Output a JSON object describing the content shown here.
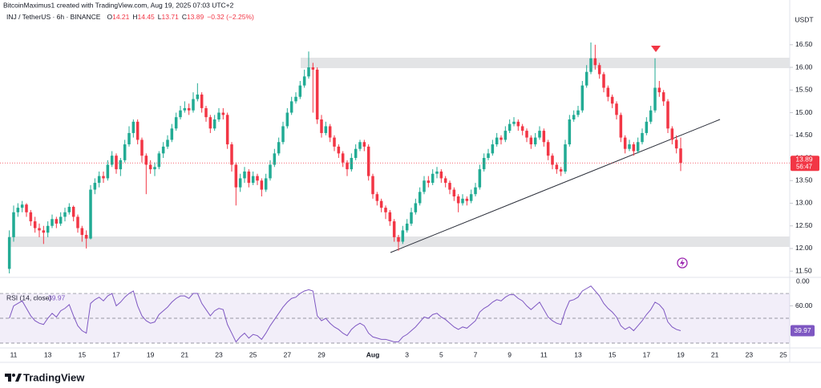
{
  "header": {
    "attribution": "BitcoinMaximus1 created with TradingView.com, Aug 19, 2025 07:03 UTC+2",
    "symbol": "INJ / TetherUS · 6h · BINANCE",
    "ohlc_labels": [
      "O",
      "H",
      "L",
      "C"
    ],
    "change": "−0.32 (−2.25%)",
    "currency": "USDT",
    "countdown": "56:47"
  },
  "chart_data": [
    {
      "type": "candlestick",
      "up_color": "#22ab94",
      "down_color": "#f23645",
      "categories": [
        null,
        "11",
        null,
        null,
        null,
        null,
        null,
        null,
        null,
        "13",
        null,
        null,
        null,
        null,
        null,
        null,
        null,
        "15",
        null,
        null,
        null,
        null,
        null,
        null,
        null,
        "17",
        null,
        null,
        null,
        null,
        null,
        null,
        null,
        "19",
        null,
        null,
        null,
        null,
        null,
        null,
        null,
        "21",
        null,
        null,
        null,
        null,
        null,
        null,
        null,
        "23",
        null,
        null,
        null,
        null,
        null,
        null,
        null,
        "25",
        null,
        null,
        null,
        null,
        null,
        null,
        null,
        "27",
        null,
        null,
        null,
        null,
        null,
        null,
        null,
        "29",
        null,
        null,
        null,
        null,
        null,
        null,
        null,
        null,
        null,
        null,
        null,
        "Aug",
        null,
        null,
        null,
        null,
        null,
        null,
        null,
        "3",
        null,
        null,
        null,
        null,
        null,
        null,
        null,
        "5",
        null,
        null,
        null,
        null,
        null,
        null,
        null,
        "7",
        null,
        null,
        null,
        null,
        null,
        null,
        null,
        "9",
        null,
        null,
        null,
        null,
        null,
        null,
        null,
        "11",
        null,
        null,
        null,
        null,
        null,
        null,
        null,
        "13",
        null,
        null,
        null,
        null,
        null,
        null,
        null,
        "15",
        null,
        null,
        null,
        null,
        null,
        null,
        null,
        "17",
        null,
        null,
        null,
        null,
        null,
        null,
        null,
        "19",
        null,
        null,
        null,
        null,
        null,
        null,
        null,
        "21",
        null,
        null,
        null,
        null,
        null,
        null,
        null,
        "23",
        null,
        null,
        null,
        null,
        null,
        null,
        null,
        "25",
        null
      ],
      "open": [
        11.55,
        12.25,
        12.8,
        12.9,
        12.97,
        12.8,
        12.6,
        12.45,
        12.4,
        12.35,
        12.5,
        12.65,
        12.55,
        12.7,
        12.8,
        12.92,
        12.7,
        12.45,
        12.3,
        12.22,
        13.3,
        13.45,
        13.6,
        13.55,
        13.85,
        14.05,
        13.75,
        13.95,
        14.3,
        14.55,
        14.8,
        14.4,
        14.05,
        13.85,
        13.75,
        13.8,
        14.1,
        14.25,
        14.4,
        14.65,
        14.9,
        15.05,
        15.1,
        15.05,
        15.3,
        15.4,
        15.1,
        14.9,
        14.65,
        14.85,
        15,
        14.95,
        14.3,
        13.85,
        13.35,
        13.55,
        13.7,
        13.45,
        13.6,
        13.5,
        13.3,
        13.55,
        13.85,
        14.1,
        14.35,
        14.7,
        15,
        15.25,
        15.35,
        15.6,
        15.8,
        16,
        15.95,
        14.85,
        14.55,
        14.7,
        14.45,
        14.25,
        14.1,
        13.9,
        13.75,
        14,
        14.2,
        14.35,
        14.25,
        13.6,
        13.2,
        13.05,
        12.9,
        12.8,
        12.6,
        12.25,
        12.15,
        12.4,
        12.55,
        12.8,
        13,
        13.25,
        13.5,
        13.45,
        13.65,
        13.7,
        13.55,
        13.45,
        13.3,
        13.15,
        13,
        13.1,
        13.05,
        13.2,
        13.35,
        13.75,
        14,
        14.1,
        14.3,
        14.45,
        14.4,
        14.6,
        14.75,
        14.8,
        14.7,
        14.6,
        14.45,
        14.3,
        14.45,
        14.6,
        14.35,
        14.05,
        13.85,
        13.75,
        13.7,
        14.3,
        14.85,
        14.95,
        15.05,
        15.6,
        15.9,
        16.2,
        16.05,
        15.85,
        15.55,
        15.35,
        15.2,
        14.95,
        14.45,
        14.2,
        14.3,
        14.15,
        14.35,
        14.55,
        14.8,
        15.05,
        15.55,
        15.45,
        15.25,
        14.65,
        14.4,
        14.21,
        null,
        null,
        null,
        null,
        null,
        null,
        null,
        null,
        null,
        null,
        null,
        null,
        null,
        null,
        null,
        null,
        null,
        null,
        null,
        null,
        null,
        null,
        null,
        null,
        null
      ],
      "high": [
        12.4,
        12.95,
        13,
        13.05,
        13,
        12.85,
        12.7,
        12.55,
        12.5,
        12.6,
        12.75,
        12.7,
        12.8,
        12.9,
        13,
        12.95,
        12.75,
        12.5,
        12.4,
        13.4,
        13.55,
        13.7,
        13.7,
        13.95,
        14.15,
        14.1,
        14,
        14.4,
        14.7,
        14.85,
        14.85,
        14.45,
        14.1,
        13.95,
        13.9,
        14.15,
        14.35,
        14.5,
        14.75,
        15,
        15.15,
        15.25,
        15.2,
        15.45,
        15.65,
        15.45,
        15.15,
        14.95,
        14.95,
        15.1,
        15.1,
        15,
        14.35,
        13.9,
        13.65,
        13.8,
        13.75,
        13.7,
        13.65,
        13.55,
        13.65,
        13.95,
        14.2,
        14.45,
        14.8,
        15.1,
        15.35,
        15.45,
        15.7,
        15.95,
        16.35,
        16.1,
        16,
        14.95,
        14.8,
        14.75,
        14.5,
        14.3,
        14.15,
        13.95,
        14.1,
        14.3,
        14.4,
        14.4,
        14.3,
        13.65,
        13.25,
        13.1,
        12.95,
        12.85,
        12.65,
        12.3,
        12.5,
        12.65,
        12.9,
        13.1,
        13.35,
        13.6,
        13.6,
        13.75,
        13.8,
        13.75,
        13.6,
        13.5,
        13.35,
        13.2,
        13.2,
        13.15,
        13.3,
        13.45,
        13.85,
        14.1,
        14.2,
        14.4,
        14.55,
        14.5,
        14.7,
        14.85,
        14.9,
        14.85,
        14.75,
        14.65,
        14.5,
        14.55,
        14.7,
        14.65,
        14.4,
        14.1,
        13.9,
        13.8,
        14.4,
        14.95,
        15.05,
        15.15,
        15.7,
        16.05,
        16.55,
        16.5,
        16.1,
        15.9,
        15.6,
        15.4,
        15.25,
        15,
        14.5,
        14.4,
        14.35,
        14.45,
        14.65,
        14.9,
        15.15,
        16.2,
        15.7,
        15.5,
        15.3,
        14.7,
        14.5,
        14.45,
        null,
        null,
        null,
        null,
        null,
        null,
        null,
        null,
        null,
        null,
        null,
        null,
        null,
        null,
        null,
        null,
        null,
        null,
        null,
        null,
        null,
        null,
        null,
        null,
        null
      ],
      "low": [
        11.45,
        12.15,
        12.7,
        12.8,
        12.7,
        12.5,
        12.35,
        12.25,
        12.1,
        12.25,
        12.45,
        12.45,
        12.5,
        12.6,
        12.75,
        12.6,
        12.35,
        12.15,
        12,
        12.2,
        13.2,
        13.35,
        13.45,
        13.5,
        13.8,
        13.65,
        13.6,
        13.9,
        14.25,
        14.45,
        14.3,
        13.9,
        13.2,
        13.65,
        13.6,
        13.75,
        14,
        14.2,
        14.35,
        14.6,
        14.85,
        15,
        14.95,
        15,
        15.25,
        15,
        14.8,
        14.55,
        14.6,
        14.8,
        14.85,
        14.2,
        13.7,
        12.95,
        13.25,
        13.45,
        13.35,
        13.4,
        13.4,
        13.15,
        13.25,
        13.5,
        13.8,
        14.05,
        14.3,
        14.65,
        14.95,
        15.2,
        15.3,
        15.55,
        15.75,
        15,
        14.75,
        14.45,
        14.5,
        14.35,
        14.15,
        14,
        13.8,
        13.6,
        13.7,
        13.95,
        14.15,
        14.15,
        13.5,
        13.1,
        12.95,
        12.8,
        12.65,
        12.5,
        12.15,
        11.95,
        12.1,
        12.35,
        12.5,
        12.75,
        12.95,
        13.2,
        13.35,
        13.4,
        13.55,
        13.45,
        13.35,
        13.2,
        13.05,
        12.8,
        12.95,
        12.95,
        13,
        13.15,
        13.3,
        13.7,
        13.95,
        14.05,
        14.25,
        14.3,
        14.35,
        14.55,
        14.7,
        14.6,
        14.5,
        14.35,
        14.2,
        14.25,
        14.4,
        14.25,
        13.95,
        13.75,
        13.65,
        13.6,
        13.65,
        14.25,
        14.8,
        14.9,
        15,
        15.55,
        15.85,
        15.95,
        15.75,
        15.45,
        15.25,
        15.1,
        14.85,
        14.35,
        14.1,
        14.15,
        14.05,
        14.1,
        14.3,
        14.5,
        14.75,
        15,
        15.35,
        15.15,
        14.55,
        14.3,
        14.1,
        13.71,
        null,
        null,
        null,
        null,
        null,
        null,
        null,
        null,
        null,
        null,
        null,
        null,
        null,
        null,
        null,
        null,
        null,
        null,
        null,
        null,
        null,
        null,
        null,
        null,
        null
      ],
      "close": [
        12.25,
        12.8,
        12.9,
        12.97,
        12.8,
        12.6,
        12.45,
        12.4,
        12.35,
        12.5,
        12.65,
        12.55,
        12.7,
        12.8,
        12.92,
        12.7,
        12.45,
        12.3,
        12.22,
        13.3,
        13.45,
        13.6,
        13.55,
        13.85,
        14.05,
        13.75,
        13.95,
        14.3,
        14.55,
        14.8,
        14.4,
        14.05,
        13.85,
        13.75,
        13.8,
        14.1,
        14.25,
        14.4,
        14.65,
        14.9,
        15.05,
        15.1,
        15.05,
        15.3,
        15.4,
        15.1,
        14.9,
        14.65,
        14.85,
        15,
        14.95,
        14.3,
        13.85,
        13.35,
        13.55,
        13.7,
        13.45,
        13.6,
        13.5,
        13.3,
        13.55,
        13.85,
        14.1,
        14.35,
        14.7,
        15,
        15.25,
        15.35,
        15.6,
        15.8,
        16,
        15.95,
        14.85,
        14.55,
        14.7,
        14.45,
        14.25,
        14.1,
        13.9,
        13.75,
        14,
        14.2,
        14.35,
        14.25,
        13.6,
        13.2,
        13.05,
        12.9,
        12.8,
        12.6,
        12.25,
        12.15,
        12.4,
        12.55,
        12.8,
        13,
        13.25,
        13.5,
        13.45,
        13.65,
        13.7,
        13.55,
        13.45,
        13.3,
        13.15,
        13,
        13.1,
        13.05,
        13.2,
        13.35,
        13.75,
        14,
        14.1,
        14.3,
        14.45,
        14.4,
        14.6,
        14.75,
        14.8,
        14.7,
        14.6,
        14.45,
        14.3,
        14.45,
        14.6,
        14.35,
        14.05,
        13.85,
        13.75,
        13.7,
        14.3,
        14.85,
        14.95,
        15.05,
        15.6,
        15.9,
        16.2,
        16.05,
        15.85,
        15.55,
        15.35,
        15.2,
        14.95,
        14.45,
        14.2,
        14.3,
        14.15,
        14.35,
        14.55,
        14.8,
        15.05,
        15.55,
        15.45,
        15.25,
        14.65,
        14.4,
        14.21,
        13.89,
        null,
        null,
        null,
        null,
        null,
        null,
        null,
        null,
        null,
        null,
        null,
        null,
        null,
        null,
        null,
        null,
        null,
        null,
        null,
        null,
        null,
        null,
        null,
        null,
        null
      ],
      "ylim": [
        11.38,
        17.24
      ],
      "yticks": [
        {
          "value": 11.5,
          "label": "11.50"
        },
        {
          "value": 12,
          "label": "12.00"
        },
        {
          "value": 12.5,
          "label": "12.50"
        },
        {
          "value": 13,
          "label": "13.00"
        },
        {
          "value": 13.5,
          "label": "13.50"
        },
        {
          "value": 14,
          "label": "14.00"
        },
        {
          "value": 14.5,
          "label": "14.50"
        },
        {
          "value": 15,
          "label": "15.00"
        },
        {
          "value": 15.5,
          "label": "15.50"
        },
        {
          "value": 16,
          "label": "16.00"
        },
        {
          "value": 16.5,
          "label": "16.50"
        }
      ]
    },
    {
      "type": "line",
      "title": "RSI (14, close)",
      "pane_label": "0.00",
      "color": "#7e57c2",
      "band_color": "#7e57c2",
      "values": [
        50,
        60,
        62,
        64,
        58,
        52,
        48,
        46,
        45,
        50,
        54,
        51,
        56,
        58,
        61,
        52,
        44,
        40,
        38,
        62,
        65,
        67,
        64,
        68,
        70,
        60,
        63,
        67,
        70,
        72,
        60,
        52,
        48,
        46,
        47,
        53,
        56,
        59,
        63,
        66,
        68,
        68,
        66,
        70,
        70,
        62,
        57,
        52,
        56,
        58,
        57,
        45,
        38,
        31,
        35,
        38,
        34,
        37,
        36,
        33,
        38,
        44,
        49,
        54,
        59,
        63,
        66,
        67,
        70,
        72,
        73,
        72,
        52,
        48,
        50,
        46,
        43,
        41,
        38,
        36,
        41,
        44,
        46,
        44,
        38,
        35,
        34,
        33,
        33,
        32,
        31,
        31,
        35,
        37,
        40,
        43,
        47,
        51,
        50,
        53,
        54,
        51,
        49,
        46,
        43,
        41,
        43,
        42,
        45,
        48,
        55,
        58,
        60,
        63,
        65,
        64,
        67,
        69,
        69,
        66,
        64,
        60,
        57,
        60,
        63,
        57,
        51,
        48,
        46,
        45,
        56,
        64,
        65,
        67,
        72,
        74,
        76,
        72,
        68,
        62,
        58,
        55,
        51,
        44,
        41,
        43,
        40,
        44,
        48,
        53,
        57,
        63,
        61,
        57,
        47,
        43,
        41,
        39.97,
        null,
        null,
        null,
        null,
        null,
        null,
        null,
        null,
        null,
        null,
        null,
        null,
        null,
        null,
        null,
        null,
        null,
        null,
        null,
        null,
        null,
        null,
        null,
        null,
        null
      ],
      "levels": [
        70,
        50,
        30
      ],
      "ylim": [
        27.4,
        76.5
      ],
      "yticks": [
        {
          "value": 60,
          "label": "60.00"
        }
      ]
    }
  ],
  "footer": {
    "logo": "TradingView"
  }
}
